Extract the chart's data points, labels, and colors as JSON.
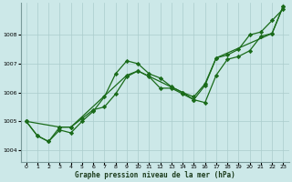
{
  "title": "Graphe pression niveau de la mer (hPa)",
  "bg_color": "#cce8e8",
  "grid_color": "#aacccc",
  "line_color": "#1a6b1a",
  "xlim": [
    -0.5,
    23.5
  ],
  "ylim": [
    1003.6,
    1009.1
  ],
  "yticks": [
    1004,
    1005,
    1006,
    1007,
    1008
  ],
  "xticks": [
    0,
    1,
    2,
    3,
    4,
    5,
    6,
    7,
    8,
    9,
    10,
    11,
    12,
    13,
    14,
    15,
    16,
    17,
    18,
    19,
    20,
    21,
    22,
    23
  ],
  "s1_x": [
    0,
    1,
    2,
    3,
    4,
    5,
    6,
    7,
    8,
    9,
    10,
    11,
    12,
    13,
    14,
    15,
    16,
    17,
    18,
    19,
    20,
    21,
    22,
    23
  ],
  "s1_y": [
    1005.0,
    1004.5,
    1004.3,
    1004.7,
    1004.6,
    1005.0,
    1005.35,
    1005.85,
    1006.65,
    1007.1,
    1007.0,
    1006.65,
    1006.5,
    1006.2,
    1006.0,
    1005.85,
    1006.3,
    1007.2,
    1007.3,
    1007.5,
    1008.0,
    1008.1,
    1008.5,
    1008.9
  ],
  "s2_x": [
    0,
    1,
    2,
    3,
    4,
    5,
    6,
    7,
    8,
    9,
    10,
    11,
    12,
    13,
    14,
    15,
    16,
    17,
    18,
    19,
    20,
    21,
    22,
    23
  ],
  "s2_y": [
    1005.0,
    1004.5,
    1004.3,
    1004.8,
    1004.8,
    1005.1,
    1005.4,
    1005.5,
    1005.95,
    1006.55,
    1006.75,
    1006.55,
    1006.15,
    1006.15,
    1005.95,
    1005.75,
    1005.65,
    1006.6,
    1007.15,
    1007.25,
    1007.45,
    1007.95,
    1008.05,
    1009.0
  ],
  "s3_x": [
    0,
    3,
    4,
    9,
    10,
    14,
    15,
    16,
    17,
    22,
    23
  ],
  "s3_y": [
    1005.0,
    1004.8,
    1004.8,
    1006.6,
    1006.75,
    1006.0,
    1005.75,
    1006.25,
    1007.2,
    1008.05,
    1009.0
  ]
}
